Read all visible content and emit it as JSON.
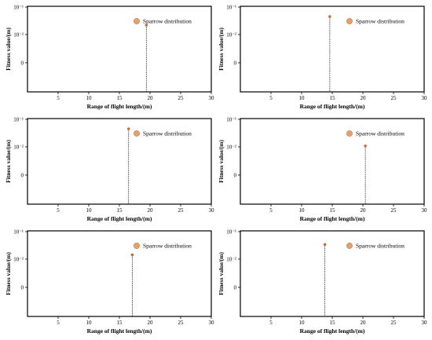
{
  "chart_data": [
    {
      "type": "scatter",
      "xlabel": "Range of flight length/(m)",
      "ylabel": "Fitness value/(m)",
      "xlim": [
        0,
        30
      ],
      "x_ticks": [
        "5",
        "10",
        "15",
        "20",
        "25",
        "30"
      ],
      "y_ticks": [
        "10⁻¹",
        "10⁻²",
        "0"
      ],
      "legend": "Sparrow distribution",
      "legend_position": "top-right",
      "series": [
        {
          "name": "Sparrow distribution",
          "points": [
            {
              "x": 19.4,
              "y_level": 0.22
            }
          ]
        }
      ]
    },
    {
      "type": "scatter",
      "xlabel": "Range of flight length/(m)",
      "ylabel": "Fitness value/(m)",
      "xlim": [
        0,
        30
      ],
      "x_ticks": [
        "5",
        "10",
        "15",
        "20",
        "25",
        "30"
      ],
      "y_ticks": [
        "10⁻¹",
        "10⁻²",
        "0"
      ],
      "legend": "Sparrow distribution",
      "legend_position": "top-right",
      "series": [
        {
          "name": "Sparrow distribution",
          "points": [
            {
              "x": 14.6,
              "y_level": 0.12
            }
          ]
        }
      ]
    },
    {
      "type": "scatter",
      "xlabel": "Range of flight length/(m)",
      "ylabel": "Fitness value/(m)",
      "xlim": [
        0,
        30
      ],
      "x_ticks": [
        "5",
        "10",
        "15",
        "20",
        "25",
        "30"
      ],
      "y_ticks": [
        "10⁻¹",
        "10⁻²",
        "0"
      ],
      "legend": "Sparrow distribution",
      "legend_position": "top-right",
      "series": [
        {
          "name": "Sparrow distribution",
          "points": [
            {
              "x": 16.5,
              "y_level": 0.12
            }
          ]
        }
      ]
    },
    {
      "type": "scatter",
      "xlabel": "Range of flight length/(m)",
      "ylabel": "Fitness value/(m)",
      "xlim": [
        0,
        30
      ],
      "x_ticks": [
        "5",
        "10",
        "15",
        "20",
        "25",
        "30"
      ],
      "y_ticks": [
        "10⁻¹",
        "10⁻²",
        "0"
      ],
      "legend": "Sparrow distribution",
      "legend_position": "top-right",
      "series": [
        {
          "name": "Sparrow distribution",
          "points": [
            {
              "x": 20.4,
              "y_level": 0.32
            }
          ]
        }
      ]
    },
    {
      "type": "scatter",
      "xlabel": "Range of flight length/(m)",
      "ylabel": "Fitness value/(m)",
      "xlim": [
        0,
        30
      ],
      "x_ticks": [
        "5",
        "10",
        "15",
        "20",
        "25",
        "30"
      ],
      "y_ticks": [
        "10⁻¹",
        "10⁻²",
        "0"
      ],
      "legend": "Sparrow distribution",
      "legend_position": "top-right",
      "series": [
        {
          "name": "Sparrow distribution",
          "points": [
            {
              "x": 17.1,
              "y_level": 0.28
            }
          ]
        }
      ]
    },
    {
      "type": "scatter",
      "xlabel": "Range of flight length/(m)",
      "ylabel": "Fitness value/(m)",
      "xlim": [
        0,
        30
      ],
      "x_ticks": [
        "5",
        "10",
        "15",
        "20",
        "25",
        "30"
      ],
      "y_ticks": [
        "10⁻¹",
        "10⁻²",
        "0"
      ],
      "legend": "Sparrow distribution",
      "legend_position": "top-right",
      "series": [
        {
          "name": "Sparrow distribution",
          "points": [
            {
              "x": 13.8,
              "y_level": 0.16
            }
          ]
        }
      ]
    }
  ],
  "colors": {
    "marker": "#e8a06a",
    "marker_edge": "#c9703a",
    "axis": "#000000"
  }
}
